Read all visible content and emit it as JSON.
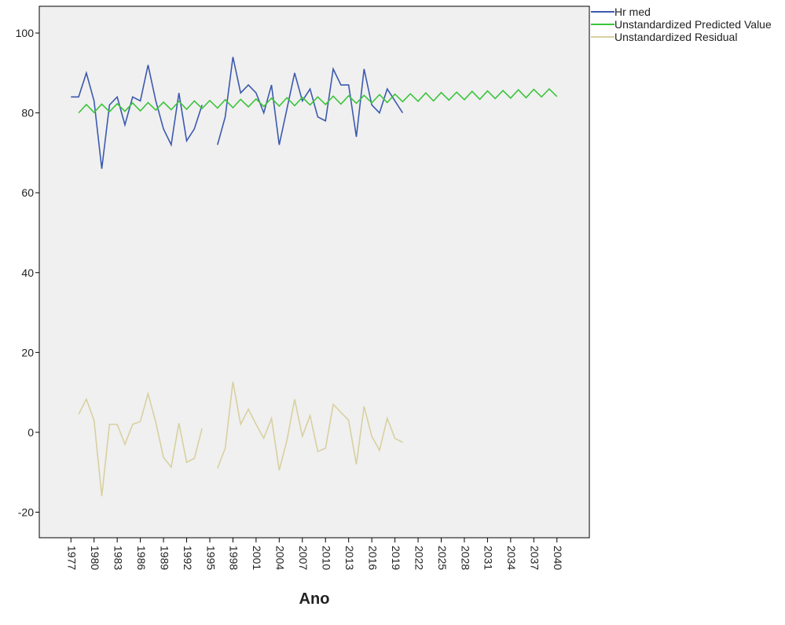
{
  "chart_data": {
    "type": "line",
    "x_label": "Ano",
    "x": [
      1977,
      1978,
      1979,
      1980,
      1981,
      1982,
      1983,
      1984,
      1985,
      1986,
      1987,
      1988,
      1989,
      1990,
      1991,
      1992,
      1993,
      1994,
      1995,
      1996,
      1997,
      1998,
      1999,
      2000,
      2001,
      2002,
      2003,
      2004,
      2005,
      2006,
      2007,
      2008,
      2009,
      2010,
      2011,
      2012,
      2013,
      2014,
      2015,
      2016,
      2017,
      2018,
      2019,
      2020,
      2021,
      2022,
      2023,
      2024,
      2025,
      2026,
      2027,
      2028,
      2029,
      2030,
      2031,
      2032,
      2033,
      2034,
      2035,
      2036,
      2037,
      2038,
      2039,
      2040
    ],
    "series": [
      {
        "name": "Hr med",
        "color": "#3c5aae",
        "values": [
          84,
          84,
          90,
          83,
          66,
          82,
          84,
          77,
          84,
          83,
          92,
          83,
          76,
          72,
          85,
          73,
          76,
          82,
          null,
          72,
          79,
          94,
          85,
          87,
          85,
          80,
          87,
          72,
          81,
          90,
          83,
          86,
          79,
          78,
          91,
          87,
          87,
          74,
          91,
          82,
          80,
          86,
          83,
          80,
          null,
          null,
          null,
          null,
          null,
          null,
          null,
          null,
          null,
          null,
          null,
          null,
          null,
          null,
          null,
          null,
          null,
          null,
          null,
          null
        ]
      },
      {
        "name": "Unstandardized Predicted Value",
        "color": "#3cc43c",
        "values": [
          null,
          80.0,
          82.1,
          80.1,
          82.2,
          80.3,
          82.3,
          80.4,
          82.5,
          80.5,
          82.6,
          80.7,
          82.7,
          80.8,
          82.9,
          80.9,
          83.0,
          81.1,
          83.1,
          81.2,
          83.3,
          81.3,
          83.4,
          81.5,
          83.5,
          81.6,
          83.7,
          81.7,
          83.8,
          81.8,
          83.9,
          82.0,
          84.0,
          82.1,
          84.2,
          82.2,
          84.3,
          82.4,
          84.4,
          82.5,
          84.6,
          82.6,
          84.7,
          82.8,
          84.8,
          82.9,
          85.0,
          83.0,
          85.1,
          83.2,
          85.2,
          83.3,
          85.4,
          83.4,
          85.5,
          83.6,
          85.6,
          83.7,
          85.8,
          83.8,
          85.9,
          84.0,
          86.0,
          84.1
        ]
      },
      {
        "name": "Unstandardized Residual",
        "color": "#d8d0a0",
        "values": [
          null,
          4.5,
          8.3,
          3,
          -16,
          2,
          2,
          -3,
          2,
          2.7,
          9.7,
          2.5,
          -6.3,
          -8.7,
          2.3,
          -7.5,
          -6.5,
          1,
          null,
          -9,
          -4,
          12.7,
          2,
          5.8,
          2,
          -1.5,
          3.5,
          -9.5,
          -2,
          8.3,
          -1,
          4.2,
          -4.8,
          -4,
          7,
          5,
          3,
          -8,
          6.5,
          -1,
          -4.5,
          3.5,
          -1.5,
          -2.5,
          null,
          null,
          null,
          null,
          null,
          null,
          null,
          null,
          null,
          null,
          null,
          null,
          null,
          null,
          null,
          null,
          null,
          null,
          null,
          null
        ]
      }
    ],
    "xlim": [
      1972.9,
      2044.2
    ],
    "xticks": [
      1977,
      1980,
      1983,
      1986,
      1989,
      1992,
      1995,
      1998,
      2001,
      2004,
      2007,
      2010,
      2013,
      2016,
      2019,
      2022,
      2025,
      2028,
      2031,
      2034,
      2037,
      2040
    ],
    "ylim": [
      -26.4,
      106.7
    ],
    "yticks": [
      -20,
      0,
      20,
      40,
      60,
      80,
      100
    ],
    "legend": "top-right"
  }
}
